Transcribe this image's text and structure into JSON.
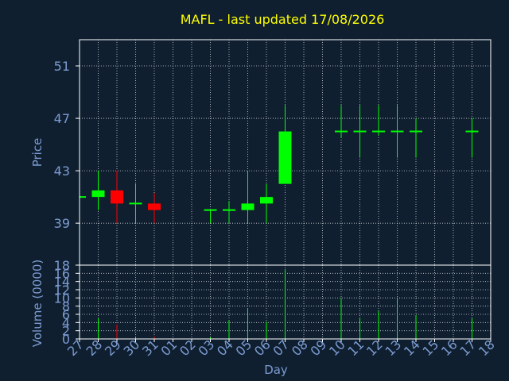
{
  "title": "MAFL - last updated 17/08/2026",
  "colors": {
    "background": "#0f1f30",
    "title": "#ffff00",
    "axis_text": "#7b9bd0",
    "frame": "#ffffff",
    "grid": "#ffffff",
    "up": "#00ff00",
    "down": "#ff0000",
    "volume": "#00ff00"
  },
  "chart_data": [
    {
      "type": "candlestick",
      "title": "MAFL - last updated 17/08/2026",
      "ylabel": "Price",
      "ylim": [
        35.8,
        53
      ],
      "yticks": [
        39,
        43,
        47,
        51
      ],
      "grid": true,
      "categories": [
        "27",
        "28",
        "29",
        "30",
        "31",
        "01",
        "02",
        "03",
        "04",
        "05",
        "06",
        "07",
        "08",
        "09",
        "10",
        "11",
        "12",
        "13",
        "14",
        "15",
        "16",
        "17",
        "18"
      ],
      "candles": [
        {
          "x": "27",
          "open": 41.0,
          "high": 41.0,
          "low": 41.0,
          "close": 41.0
        },
        {
          "x": "28",
          "open": 41.0,
          "high": 43.0,
          "low": 40.0,
          "close": 41.5
        },
        {
          "x": "29",
          "open": 41.5,
          "high": 43.0,
          "low": 39.0,
          "close": 40.5
        },
        {
          "x": "30",
          "open": 40.5,
          "high": 42.0,
          "low": 39.0,
          "close": 40.5
        },
        {
          "x": "31",
          "open": 40.5,
          "high": 41.3,
          "low": 39.0,
          "close": 40.0
        },
        {
          "x": "03",
          "open": 40.0,
          "high": 40.0,
          "low": 39.0,
          "close": 40.0
        },
        {
          "x": "04",
          "open": 40.0,
          "high": 40.7,
          "low": 39.0,
          "close": 40.0
        },
        {
          "x": "05",
          "open": 40.0,
          "high": 43.0,
          "low": 39.0,
          "close": 40.5
        },
        {
          "x": "06",
          "open": 40.5,
          "high": 42.0,
          "low": 39.0,
          "close": 41.0
        },
        {
          "x": "07",
          "open": 42.0,
          "high": 48.0,
          "low": 42.0,
          "close": 46.0
        },
        {
          "x": "10",
          "open": 46.0,
          "high": 48.0,
          "low": 45.5,
          "close": 46.0
        },
        {
          "x": "11",
          "open": 46.0,
          "high": 48.0,
          "low": 44.0,
          "close": 46.0
        },
        {
          "x": "12",
          "open": 46.0,
          "high": 48.0,
          "low": 45.7,
          "close": 46.0
        },
        {
          "x": "13",
          "open": 46.0,
          "high": 48.0,
          "low": 44.0,
          "close": 46.0
        },
        {
          "x": "14",
          "open": 46.0,
          "high": 47.0,
          "low": 44.0,
          "close": 46.0
        },
        {
          "x": "17",
          "open": 46.0,
          "high": 47.0,
          "low": 44.0,
          "close": 46.0
        }
      ]
    },
    {
      "type": "bar",
      "xlabel": "Day",
      "ylabel": "Volume (0000)",
      "ylim": [
        0,
        18
      ],
      "yticks": [
        0,
        2,
        4,
        6,
        8,
        10,
        12,
        14,
        16,
        18
      ],
      "grid": true,
      "categories": [
        "27",
        "28",
        "29",
        "30",
        "31",
        "01",
        "02",
        "03",
        "04",
        "05",
        "06",
        "07",
        "08",
        "09",
        "10",
        "11",
        "12",
        "13",
        "14",
        "15",
        "16",
        "17",
        "18"
      ],
      "values": [
        {
          "x": "28",
          "v": 5.0,
          "c": "up"
        },
        {
          "x": "29",
          "v": 3.5,
          "c": "down"
        },
        {
          "x": "30",
          "v": 0.6,
          "c": "up"
        },
        {
          "x": "31",
          "v": 0.6,
          "c": "down"
        },
        {
          "x": "03",
          "v": 0.4,
          "c": "up"
        },
        {
          "x": "04",
          "v": 4.5,
          "c": "up"
        },
        {
          "x": "05",
          "v": 7.5,
          "c": "up"
        },
        {
          "x": "06",
          "v": 4.2,
          "c": "up"
        },
        {
          "x": "07",
          "v": 17.0,
          "c": "up"
        },
        {
          "x": "10",
          "v": 10.0,
          "c": "up"
        },
        {
          "x": "11",
          "v": 5.2,
          "c": "up"
        },
        {
          "x": "12",
          "v": 6.8,
          "c": "up"
        },
        {
          "x": "13",
          "v": 9.8,
          "c": "up"
        },
        {
          "x": "14",
          "v": 5.8,
          "c": "up"
        },
        {
          "x": "17",
          "v": 5.0,
          "c": "up"
        }
      ]
    }
  ]
}
